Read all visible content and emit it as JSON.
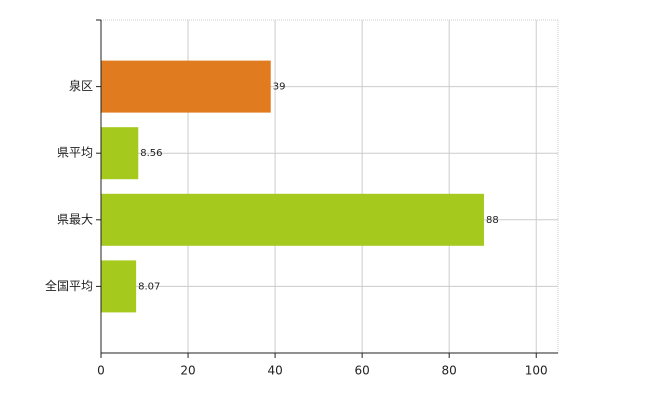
{
  "chart_data": {
    "type": "bar",
    "orientation": "horizontal",
    "categories": [
      "泉区",
      "県平均",
      "県最大",
      "全国平均"
    ],
    "values": [
      39,
      8.56,
      88,
      8.07
    ],
    "colors": [
      "#e07b1f",
      "#a5c91c",
      "#a5c91c",
      "#a5c91c"
    ],
    "xlim": [
      0,
      105
    ],
    "xticks": [
      0,
      20,
      40,
      60,
      80,
      100
    ],
    "grid": true
  }
}
